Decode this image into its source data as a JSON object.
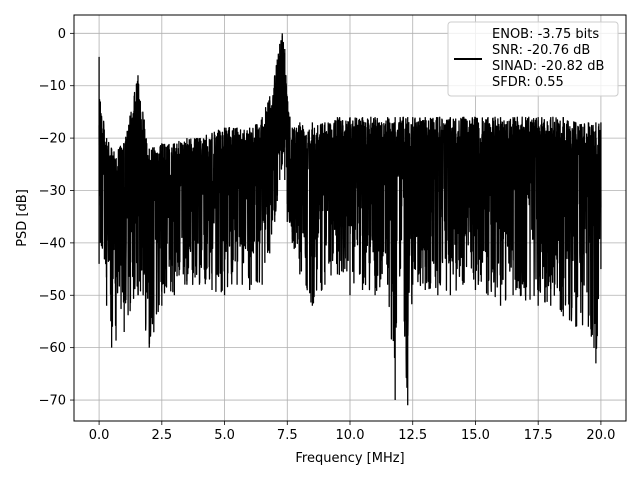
{
  "chart_data": {
    "type": "line",
    "title": "",
    "xlabel": "Frequency [MHz]",
    "ylabel": "PSD [dB]",
    "xlim": [
      -1.0,
      21.0
    ],
    "ylim": [
      -74.0,
      3.5
    ],
    "x_ticks": [
      0.0,
      2.5,
      5.0,
      7.5,
      10.0,
      12.5,
      15.0,
      17.5,
      20.0
    ],
    "x_tick_labels": [
      "0.0",
      "2.5",
      "5.0",
      "7.5",
      "10.0",
      "12.5",
      "15.0",
      "17.5",
      "20.0"
    ],
    "y_ticks": [
      0,
      -10,
      -20,
      -30,
      -40,
      -50,
      -60,
      -70
    ],
    "y_tick_labels": [
      "0",
      "−10",
      "−20",
      "−30",
      "−40",
      "−50",
      "−60",
      "−70"
    ],
    "grid": true,
    "legend_position": "top-right",
    "line_color": "#000000",
    "series": [
      {
        "legend_lines": [
          "ENOB: -3.75 bits",
          "SNR: -20.76 dB",
          "SINAD: -20.82 dB",
          "SFDR: 0.55"
        ],
        "x": [
          0.0,
          0.05,
          0.3,
          0.5,
          1.0,
          1.55,
          2.0,
          2.5,
          3.0,
          3.5,
          4.0,
          4.5,
          5.0,
          5.5,
          6.0,
          6.5,
          6.8,
          7.0,
          7.1,
          7.2,
          7.3,
          7.4,
          7.5,
          7.7,
          8.0,
          8.5,
          9.0,
          9.5,
          10.0,
          10.5,
          11.0,
          11.5,
          11.8,
          12.0,
          12.3,
          12.5,
          13.0,
          13.5,
          14.0,
          14.5,
          15.0,
          15.5,
          16.0,
          16.5,
          17.0,
          17.5,
          18.0,
          18.5,
          19.0,
          19.5,
          19.8,
          20.0
        ],
        "upper": [
          -4.5,
          -13,
          -20,
          -22,
          -21,
          -8,
          -22,
          -21,
          -21,
          -20,
          -20,
          -19,
          -18,
          -18,
          -18,
          -16,
          -12,
          -8,
          -5,
          -2,
          0,
          -3,
          -12,
          -18,
          -17,
          -17,
          -17,
          -16,
          -16,
          -16,
          -16,
          -16,
          -16,
          -16,
          -16,
          -16,
          -16,
          -16,
          -16,
          -16,
          -16,
          -16,
          -16,
          -16,
          -16,
          -16,
          -16,
          -16,
          -17,
          -17,
          -17,
          -17
        ],
        "lower": [
          -44,
          -40,
          -52,
          -60,
          -57,
          -50,
          -60,
          -52,
          -50,
          -48,
          -48,
          -49,
          -50,
          -48,
          -49,
          -48,
          -42,
          -36,
          -32,
          -28,
          -25,
          -28,
          -36,
          -40,
          -46,
          -52,
          -48,
          -46,
          -50,
          -49,
          -50,
          -48,
          -70,
          -45,
          -71,
          -48,
          -49,
          -50,
          -50,
          -48,
          -49,
          -50,
          -52,
          -50,
          -51,
          -52,
          -52,
          -54,
          -56,
          -56,
          -63,
          -45
        ]
      }
    ]
  }
}
